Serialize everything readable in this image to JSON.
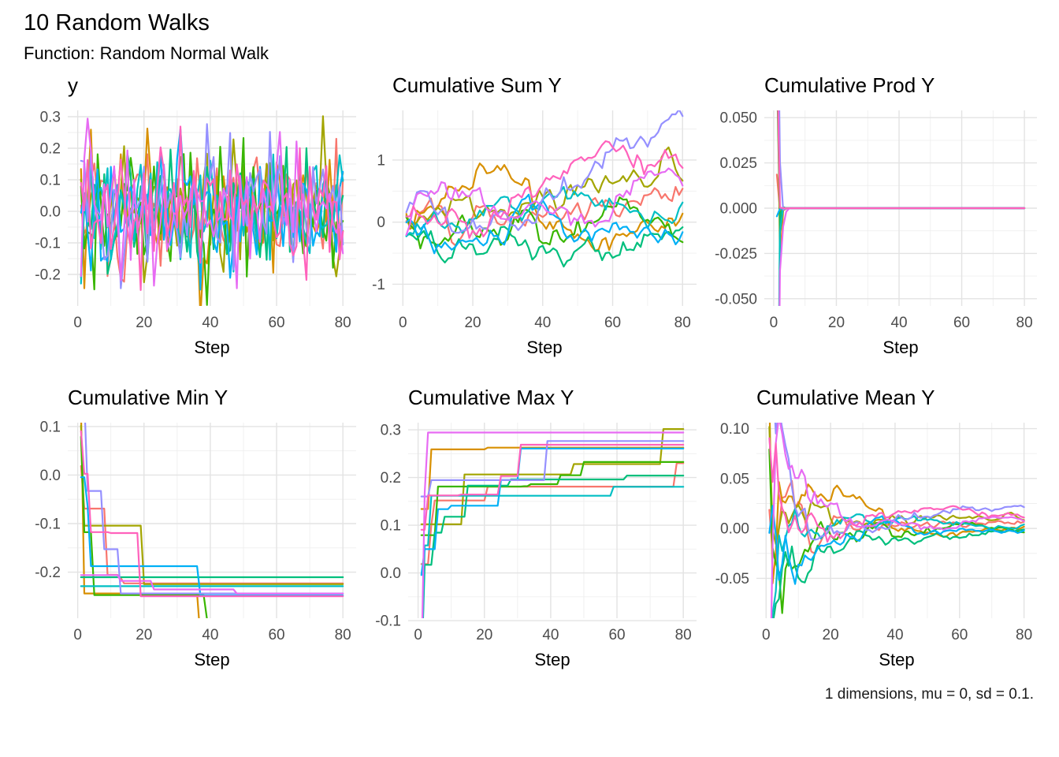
{
  "header": {
    "title": "10 Random Walks",
    "subtitle": "Function: Random Normal Walk"
  },
  "caption": "1 dimensions, mu = 0, sd = 0.1.",
  "colors": {
    "background": "#ffffff",
    "grid_major": "#e3e3e3",
    "grid_minor": "#efefef",
    "tick_label": "#4d4d4d",
    "axis_title": "#000000",
    "text": "#000000"
  },
  "chart_data": {
    "type": "line",
    "layout": "grid-2x3",
    "legend": "none",
    "shared": {
      "x_label": "Step",
      "x_ticks": [
        0,
        20,
        40,
        60,
        80
      ],
      "x_domain": [
        -3,
        84
      ],
      "x_range": [
        1,
        80
      ],
      "n_series": 10,
      "palette": [
        "#F8766D",
        "#D89000",
        "#A3A500",
        "#39B600",
        "#00BF7D",
        "#00BFC4",
        "#00B0F6",
        "#9590FF",
        "#E76BF3",
        "#FF62BC"
      ],
      "generator": {
        "kind": "gaussian-random-walk-steps",
        "mu": 0,
        "sd": 0.1,
        "steps": 80,
        "seeds": [
          101,
          2029,
          3511,
          47,
          5821,
          6703,
          7919,
          811,
          929,
          1013
        ]
      }
    },
    "panels": [
      {
        "title": "y",
        "transform": "identity",
        "ylim": [
          -0.3,
          0.32
        ],
        "yticks": [
          -0.2,
          -0.1,
          0.0,
          0.1,
          0.2,
          0.3
        ],
        "ytick_labels": [
          "-0.2",
          "-0.1",
          "0.0",
          "0.1",
          "0.2",
          "0.3"
        ]
      },
      {
        "title": "Cumulative Sum Y",
        "transform": "cumsum",
        "ylim": [
          -1.35,
          1.8
        ],
        "yticks": [
          -1,
          0,
          1
        ],
        "ytick_labels": [
          "-1",
          "0",
          "1"
        ]
      },
      {
        "title": "Cumulative Prod Y",
        "transform": "cumprod",
        "ylim": [
          -0.054,
          0.054
        ],
        "yticks": [
          -0.05,
          -0.025,
          0.0,
          0.025,
          0.05
        ],
        "ytick_labels": [
          "-0.050",
          "-0.025",
          "0.000",
          "0.025",
          "0.050"
        ]
      },
      {
        "title": "Cumulative Min Y",
        "transform": "cummin",
        "ylim": [
          -0.295,
          0.108
        ],
        "yticks": [
          -0.2,
          -0.1,
          0.0,
          0.1
        ],
        "ytick_labels": [
          "-0.2",
          "-0.1",
          "0.0",
          "0.1"
        ]
      },
      {
        "title": "Cumulative Max Y",
        "transform": "cummax",
        "ylim": [
          -0.095,
          0.315
        ],
        "yticks": [
          -0.1,
          0.0,
          0.1,
          0.2,
          0.3
        ],
        "ytick_labels": [
          "-0.1",
          "0.0",
          "0.1",
          "0.2",
          "0.3"
        ]
      },
      {
        "title": "Cumulative Mean Y",
        "transform": "cummean",
        "ylim": [
          -0.09,
          0.106
        ],
        "yticks": [
          -0.05,
          0.0,
          0.05,
          0.1
        ],
        "ytick_labels": [
          "-0.05",
          "0.00",
          "0.05",
          "0.10"
        ]
      }
    ]
  }
}
